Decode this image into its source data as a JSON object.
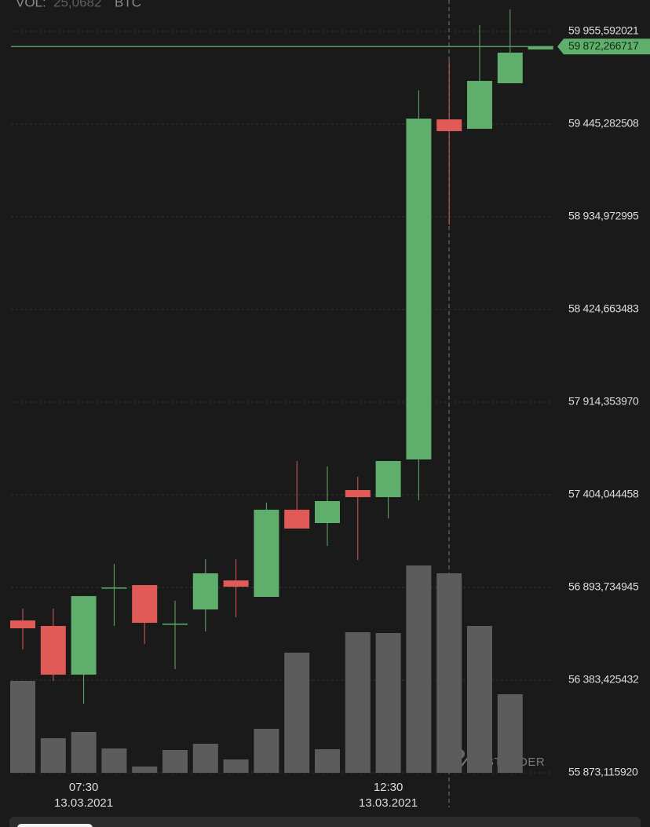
{
  "chart_data": {
    "type": "candlestick",
    "volume_label": "VOL:",
    "volume_value": "25,0682",
    "volume_unit": "BTC",
    "watermark": "TABTRADER",
    "categories": [
      null,
      null,
      "07:30",
      null,
      null,
      null,
      null,
      null,
      null,
      null,
      null,
      null,
      "12:30",
      null,
      null,
      null,
      null,
      null
    ],
    "category_dates": [
      null,
      null,
      "13.03.2021",
      null,
      null,
      null,
      null,
      null,
      null,
      null,
      null,
      null,
      "13.03.2021",
      null,
      null,
      null,
      null,
      null
    ],
    "open": [
      56712.1,
      56681.8,
      56413.7,
      56893.7,
      56906.7,
      56694.8,
      56772.6,
      56932.6,
      56841.8,
      57321.8,
      57248.3,
      57430.0,
      57391.0,
      57598.6,
      59471.2,
      59419.3,
      59670.1,
      59856.1
    ],
    "close": [
      56668.8,
      56413.7,
      56846.1,
      56893.7,
      56699.1,
      56694.8,
      56971.5,
      56898.0,
      57321.8,
      57218.1,
      57369.4,
      57391.0,
      57590.0,
      59475.5,
      59406.3,
      59683.1,
      59838.8,
      59872.3
    ],
    "high": [
      56776.9,
      56776.9,
      56846.1,
      57023.4,
      56906.7,
      56820.2,
      57049.4,
      57049.4,
      57360.8,
      57590.0,
      57559.7,
      57503.5,
      57590.0,
      59631.2,
      59795.5,
      59990.1,
      60076.6,
      59872.3
    ],
    "low": [
      56552.1,
      56379.1,
      56253.7,
      56681.8,
      56582.3,
      56443.9,
      56651.5,
      56729.4,
      56841.8,
      57218.1,
      57122.9,
      57045.1,
      57274.3,
      57373.7,
      58891.7,
      59419.3,
      59670.1,
      59856.1
    ],
    "up_color": "#5fae6c",
    "down_color": "#e05a57",
    "volume": [
      117,
      44,
      52,
      31,
      8,
      29,
      37,
      17,
      56,
      153,
      30,
      179,
      178,
      264,
      254,
      187,
      100,
      null
    ],
    "volume_color": "#5c5c5c",
    "volume_lim": [
      0,
      300
    ],
    "ylim": [
      55873.11592,
      60128.6
    ],
    "yticks": [
      {
        "value": 55873.11592,
        "label": "55 873,115920"
      },
      {
        "value": 56383.425432,
        "label": "56 383,425432"
      },
      {
        "value": 56893.734945,
        "label": "56 893,734945"
      },
      {
        "value": 57404.044458,
        "label": "57 404,044458"
      },
      {
        "value": 57914.35397,
        "label": "57 914,353970"
      },
      {
        "value": 58424.663483,
        "label": "58 424,663483"
      },
      {
        "value": 58934.972995,
        "label": "58 934,972995"
      },
      {
        "value": 59445.282508,
        "label": "59 445,282508"
      },
      {
        "value": 59955.592021,
        "label": "59 955,592021"
      }
    ],
    "current_price": {
      "value": 59872.266717,
      "label": "59 872,266717"
    },
    "grid": true
  }
}
